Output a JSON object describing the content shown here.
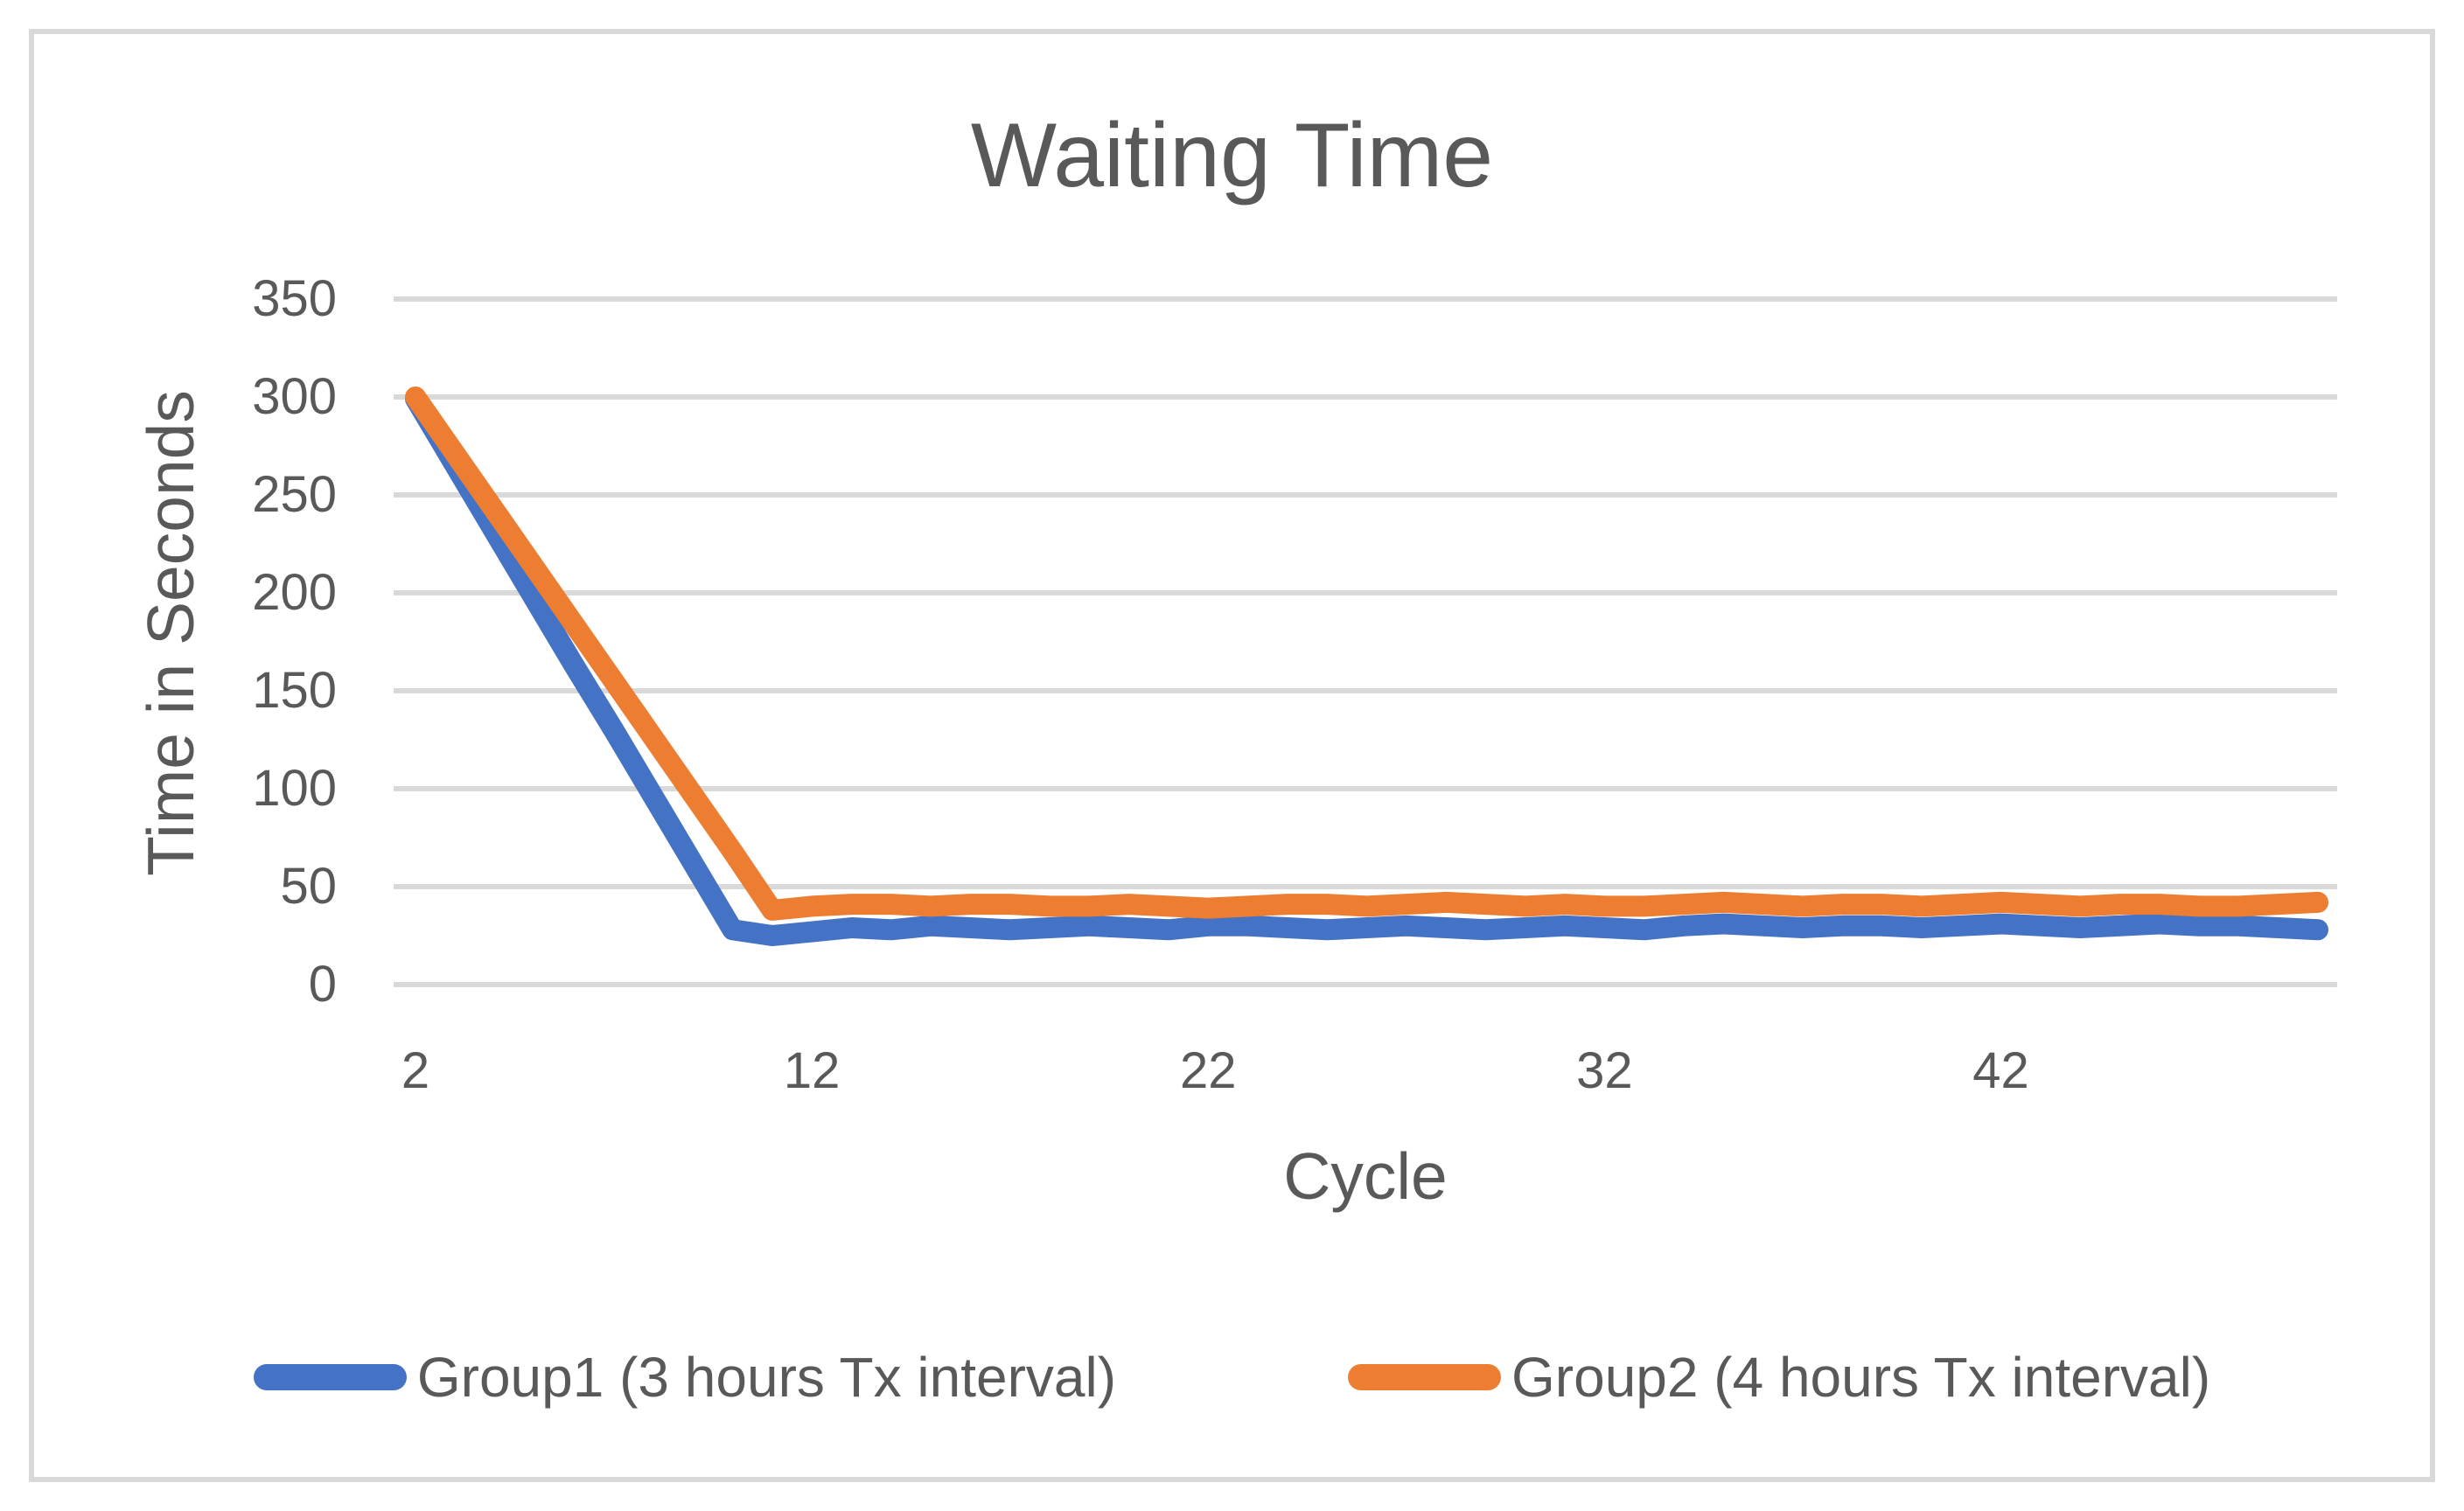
{
  "figure": {
    "title": "Waiting Time"
  },
  "chart_data": {
    "type": "line",
    "title": "Waiting Time",
    "xlabel": "Cycle",
    "ylabel": "Time in Seconds",
    "x": [
      2,
      3,
      4,
      5,
      6,
      7,
      8,
      9,
      10,
      11,
      12,
      13,
      14,
      15,
      16,
      17,
      18,
      19,
      20,
      21,
      22,
      23,
      24,
      25,
      26,
      27,
      28,
      29,
      30,
      31,
      32,
      33,
      34,
      35,
      36,
      37,
      38,
      39,
      40,
      41,
      42,
      43,
      44,
      45,
      46,
      47,
      48,
      49,
      50
    ],
    "series": [
      {
        "name": "Group1 (3 hours Tx interval)",
        "color": "#4472C4",
        "values": [
          299,
          265,
          231,
          197,
          163,
          130,
          96,
          62,
          28,
          25,
          27,
          29,
          28,
          30,
          29,
          28,
          29,
          30,
          29,
          28,
          30,
          30,
          29,
          28,
          29,
          30,
          29,
          28,
          29,
          30,
          29,
          28,
          30,
          31,
          30,
          29,
          30,
          30,
          29,
          30,
          31,
          30,
          29,
          30,
          31,
          30,
          30,
          29,
          28
        ]
      },
      {
        "name": "Group2 (4 hours Tx interval)",
        "color": "#ED7D31",
        "values": [
          300,
          271,
          242,
          213,
          184,
          155,
          126,
          97,
          68,
          38,
          40,
          41,
          41,
          40,
          41,
          41,
          40,
          40,
          41,
          40,
          39,
          40,
          41,
          41,
          40,
          41,
          42,
          41,
          40,
          41,
          40,
          40,
          41,
          42,
          41,
          40,
          41,
          41,
          40,
          41,
          42,
          41,
          40,
          41,
          41,
          40,
          40,
          41,
          42
        ]
      }
    ],
    "ylim": [
      0,
      350
    ],
    "yticks": [
      0,
      50,
      100,
      150,
      200,
      250,
      300,
      350
    ],
    "xticks": [
      2,
      12,
      22,
      32,
      42
    ],
    "grid": "horizontal",
    "legend_position": "bottom",
    "colors": {
      "text": "#595959",
      "gridline": "#D9D9D9",
      "border": "#D9D9D9"
    }
  }
}
